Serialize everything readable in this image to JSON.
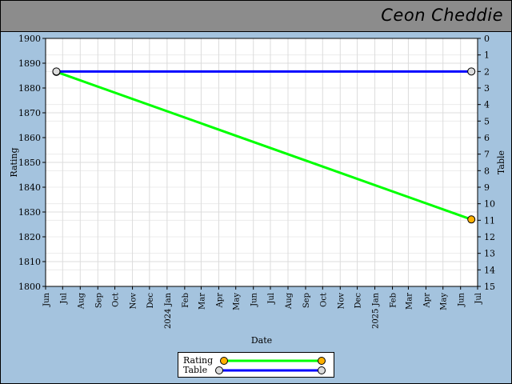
{
  "title": "Ceon Cheddie",
  "chart_data": {
    "type": "line",
    "xlabel": "Date",
    "ylabel": "Rating",
    "y2label": "Table",
    "ylim": [
      1800,
      1900
    ],
    "y2lim": [
      0,
      15
    ],
    "y2_inverted": true,
    "x_ticks": [
      "Jun",
      "Jul",
      "Aug",
      "Sep",
      "Oct",
      "Nov",
      "Dec",
      "2024 Jan",
      "Feb",
      "Mar",
      "Apr",
      "May",
      "Jun",
      "Jul",
      "Aug",
      "Sep",
      "Oct",
      "Nov",
      "Dec",
      "2025 Jan",
      "Feb",
      "Mar",
      "Apr",
      "May",
      "Jun",
      "Jul"
    ],
    "y_ticks": [
      1800,
      1810,
      1820,
      1830,
      1840,
      1850,
      1860,
      1870,
      1880,
      1890,
      1900
    ],
    "y2_ticks": [
      0,
      1,
      2,
      3,
      4,
      5,
      6,
      7,
      8,
      9,
      10,
      11,
      12,
      13,
      14,
      15
    ],
    "grid": true,
    "legend_position": "bottom",
    "series": [
      {
        "name": "Rating",
        "axis": "left",
        "color": "#00ff00",
        "marker_color": "#ffb000",
        "points": [
          {
            "x": "2023-06-20",
            "y": 1886.5
          },
          {
            "x": "2025-06-20",
            "y": 1827
          }
        ]
      },
      {
        "name": "Table",
        "axis": "right",
        "color": "#0000ff",
        "marker_color": "#dcdcdc",
        "points": [
          {
            "x": "2023-06-20",
            "y": 2
          },
          {
            "x": "2025-06-20",
            "y": 2
          }
        ]
      }
    ]
  }
}
